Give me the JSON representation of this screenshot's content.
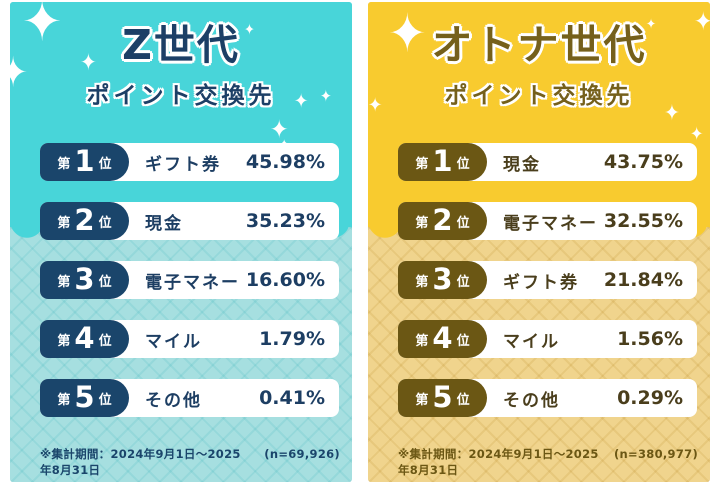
{
  "labels": {
    "rank_prefix": "第",
    "rank_suffix": "位"
  },
  "panels": [
    {
      "id": "gen-z",
      "title": "Z世代",
      "subtitle": "ポイント交換先",
      "theme": {
        "top_bg": "#48d5d9",
        "bottom_bg": "#a6dfe0",
        "accent": "#1a456b",
        "text": "#1d3e63",
        "bar_bg": "#ffffff"
      },
      "rows": [
        {
          "rank": "1",
          "label": "ギフト券",
          "value": "45.98%"
        },
        {
          "rank": "2",
          "label": "現金",
          "value": "35.23%"
        },
        {
          "rank": "3",
          "label": "電子マネー",
          "value": "16.60%"
        },
        {
          "rank": "4",
          "label": "マイル",
          "value": "1.79%"
        },
        {
          "rank": "5",
          "label": "その他",
          "value": "0.41%"
        }
      ],
      "footnote": "※集計期間：2024年9月1日～2025年8月31日",
      "sample": "(n=69,926)"
    },
    {
      "id": "otona",
      "title": "オトナ世代",
      "subtitle": "ポイント交換先",
      "theme": {
        "top_bg": "#f8cb2f",
        "bottom_bg": "#f0d48d",
        "accent": "#6b5714",
        "text": "#4a3e1c",
        "bar_bg": "#ffffff"
      },
      "rows": [
        {
          "rank": "1",
          "label": "現金",
          "value": "43.75%"
        },
        {
          "rank": "2",
          "label": "電子マネー",
          "value": "32.55%"
        },
        {
          "rank": "3",
          "label": "ギフト券",
          "value": "21.84%"
        },
        {
          "rank": "4",
          "label": "マイル",
          "value": "1.56%"
        },
        {
          "rank": "5",
          "label": "その他",
          "value": "0.29%"
        }
      ],
      "footnote": "※集計期間：2024年9月1日～2025年8月31日",
      "sample": "(n=380,977)"
    }
  ],
  "chart_data": [
    {
      "type": "table",
      "title": "Z世代 ポイント交換先",
      "categories": [
        "ギフト券",
        "現金",
        "電子マネー",
        "マイル",
        "その他"
      ],
      "values": [
        45.98,
        35.23,
        16.6,
        1.79,
        0.41
      ],
      "unit": "%",
      "note": "集計期間：2024年9月1日～2025年8月31日",
      "n": 69926
    },
    {
      "type": "table",
      "title": "オトナ世代 ポイント交換先",
      "categories": [
        "現金",
        "電子マネー",
        "ギフト券",
        "マイル",
        "その他"
      ],
      "values": [
        43.75,
        32.55,
        21.84,
        1.56,
        0.29
      ],
      "unit": "%",
      "note": "集計期間：2024年9月1日～2025年8月31日",
      "n": 380977
    }
  ]
}
